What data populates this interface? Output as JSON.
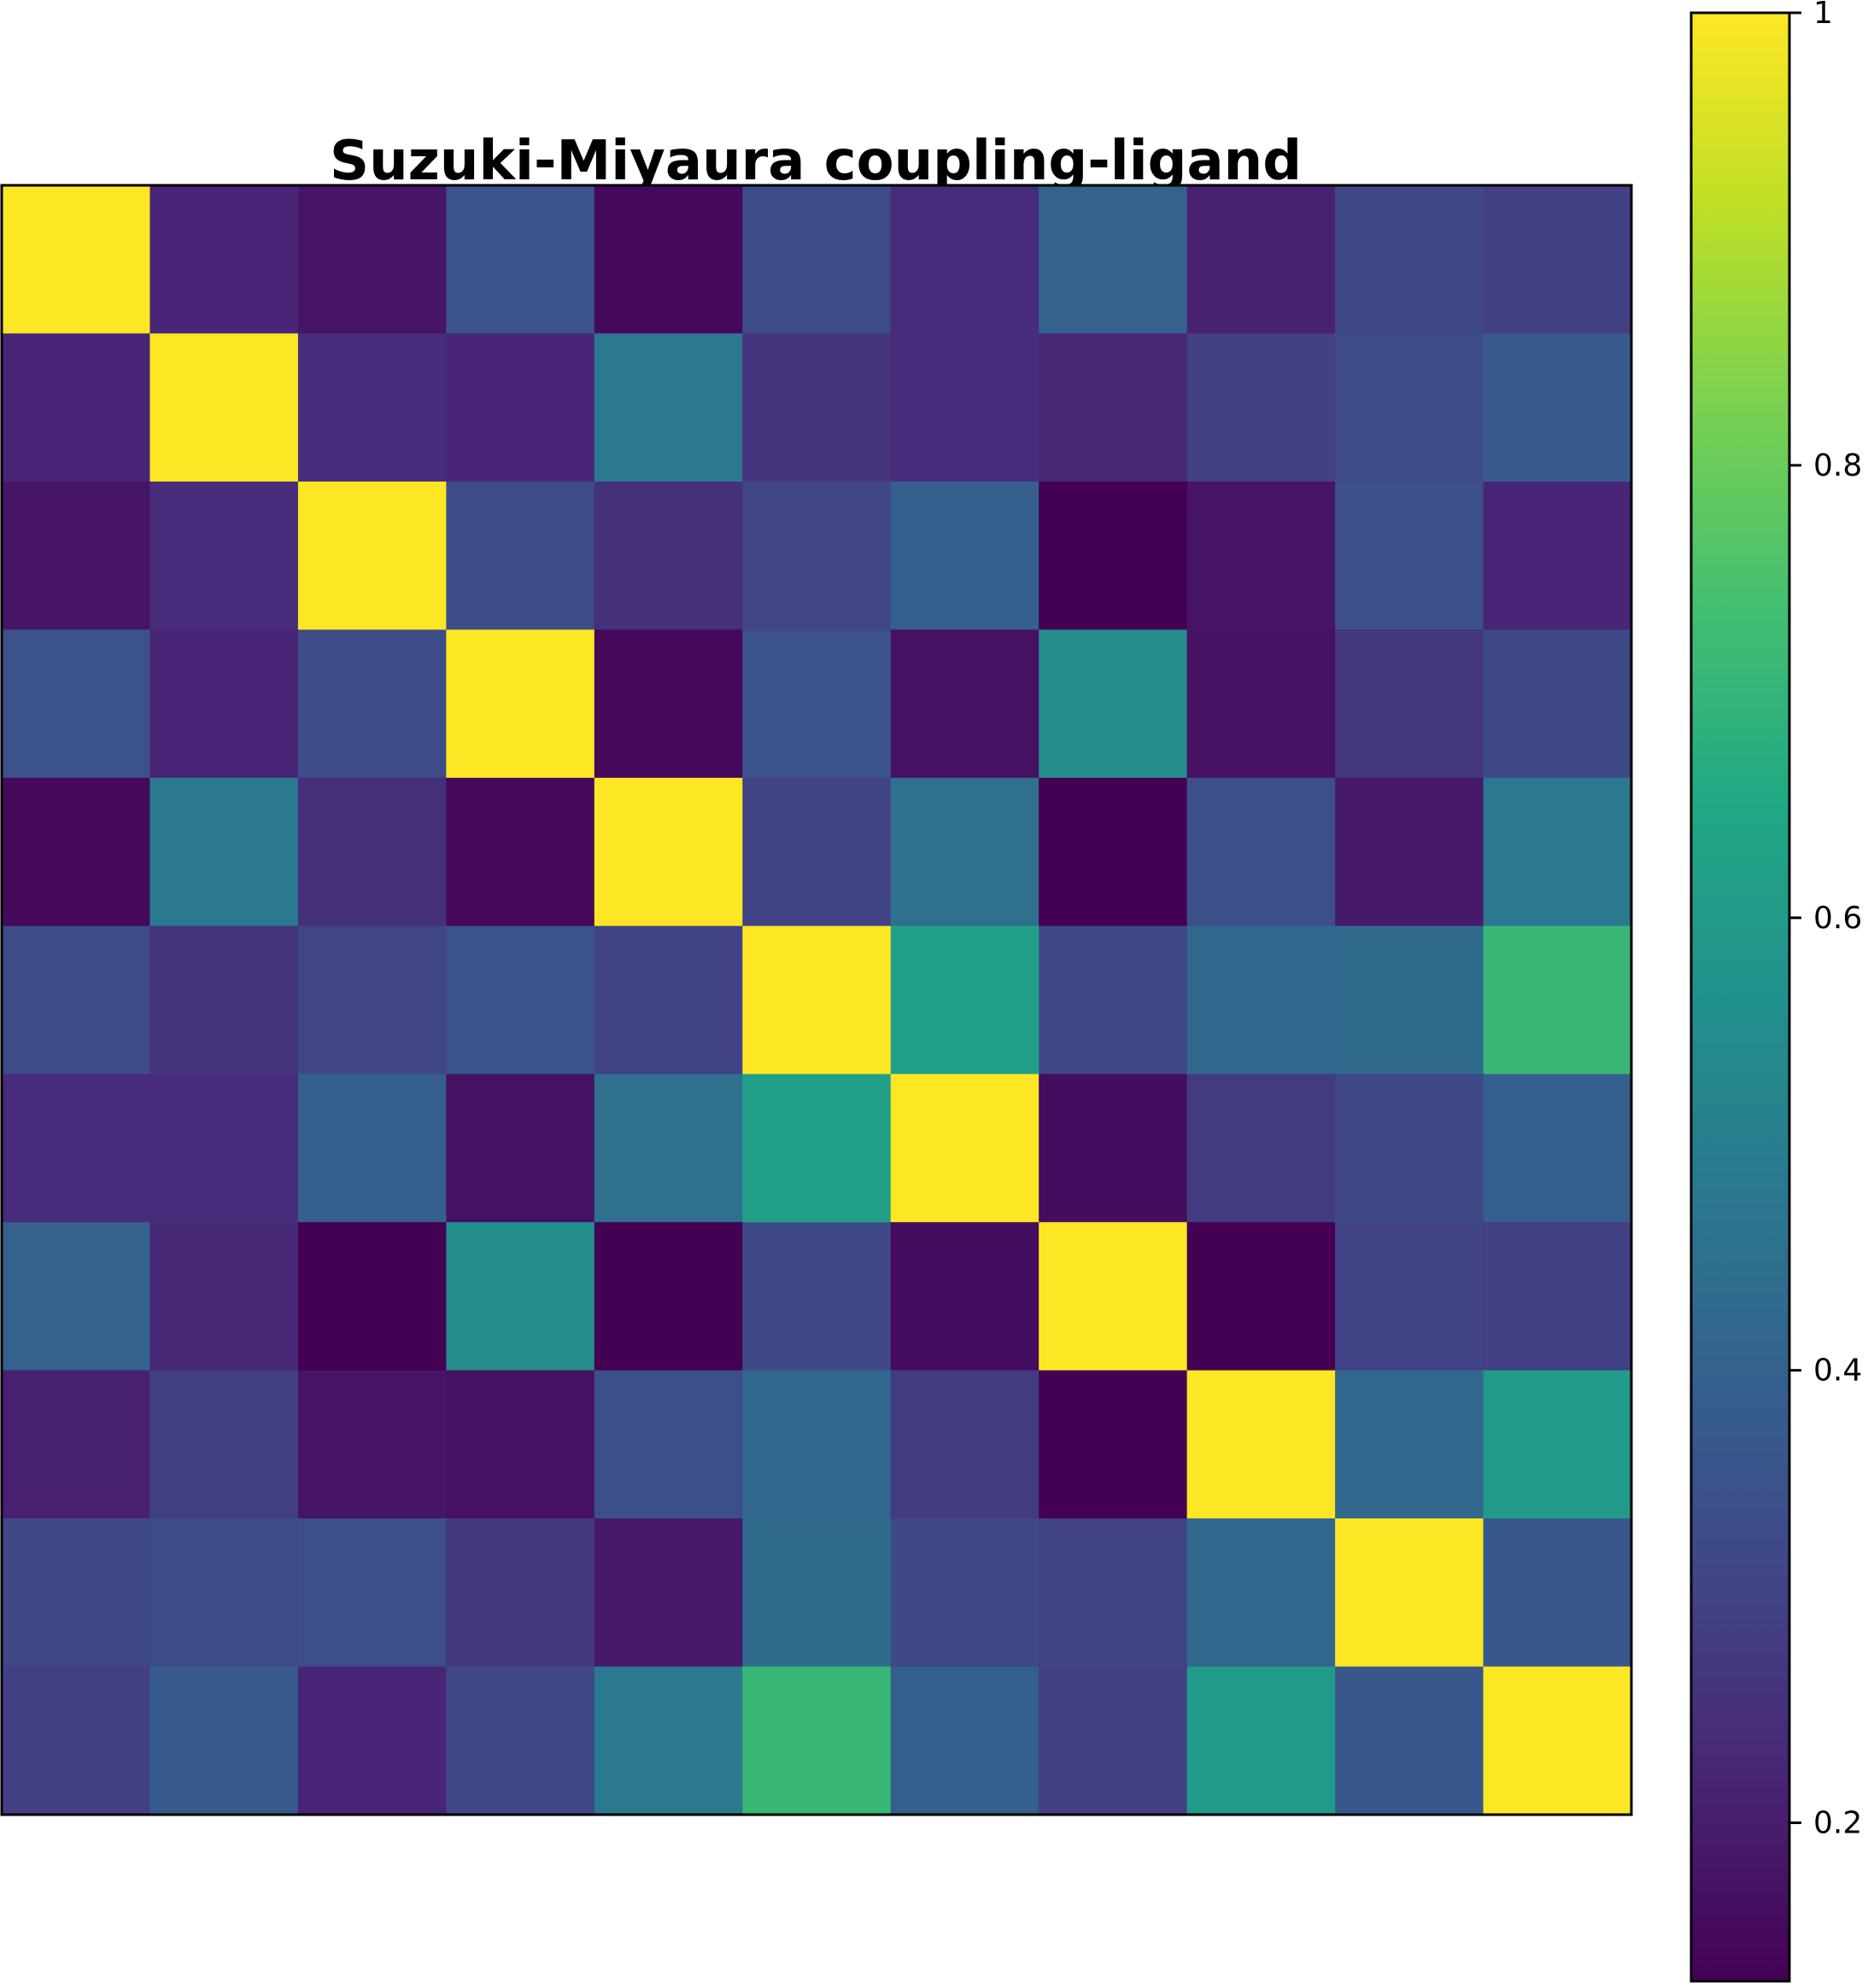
{
  "chart_data": {
    "type": "heatmap",
    "title": "Suzuki-Miyaura coupling-ligand",
    "rows": 11,
    "cols": 11,
    "colormap": "viridis",
    "vmin": 0.13,
    "vmax": 1.0,
    "colorbar_ticks": [
      0.2,
      0.4,
      0.6,
      0.8,
      1.0
    ],
    "colorbar_tick_labels": [
      "0.2",
      "0.4",
      "0.6",
      "0.8",
      "1"
    ],
    "values": [
      [
        1.0,
        0.22,
        0.18,
        0.35,
        0.15,
        0.33,
        0.24,
        0.4,
        0.21,
        0.32,
        0.29
      ],
      [
        0.22,
        1.0,
        0.24,
        0.22,
        0.48,
        0.26,
        0.24,
        0.23,
        0.29,
        0.33,
        0.38
      ],
      [
        0.18,
        0.24,
        1.0,
        0.33,
        0.25,
        0.31,
        0.39,
        0.13,
        0.18,
        0.34,
        0.22
      ],
      [
        0.35,
        0.22,
        0.33,
        1.0,
        0.15,
        0.35,
        0.17,
        0.55,
        0.17,
        0.27,
        0.32
      ],
      [
        0.15,
        0.48,
        0.25,
        0.15,
        1.0,
        0.3,
        0.45,
        0.13,
        0.34,
        0.19,
        0.48
      ],
      [
        0.33,
        0.26,
        0.31,
        0.35,
        0.3,
        1.0,
        0.62,
        0.32,
        0.42,
        0.43,
        0.71
      ],
      [
        0.24,
        0.24,
        0.39,
        0.17,
        0.45,
        0.62,
        1.0,
        0.16,
        0.28,
        0.32,
        0.39
      ],
      [
        0.4,
        0.23,
        0.13,
        0.55,
        0.13,
        0.32,
        0.16,
        1.0,
        0.13,
        0.3,
        0.29
      ],
      [
        0.21,
        0.29,
        0.18,
        0.17,
        0.34,
        0.42,
        0.28,
        0.13,
        1.0,
        0.42,
        0.6
      ],
      [
        0.32,
        0.33,
        0.34,
        0.27,
        0.19,
        0.43,
        0.32,
        0.3,
        0.42,
        1.0,
        0.37
      ],
      [
        0.29,
        0.38,
        0.22,
        0.32,
        0.48,
        0.71,
        0.39,
        0.29,
        0.6,
        0.37,
        1.0
      ]
    ]
  }
}
